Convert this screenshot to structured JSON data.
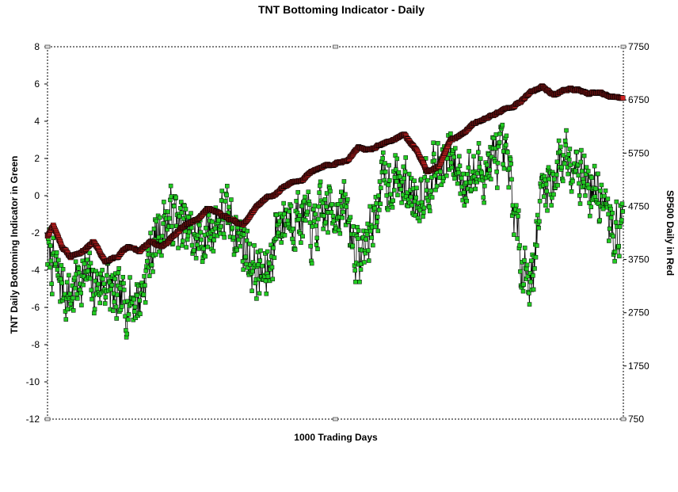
{
  "chart_data": {
    "type": "line",
    "title": "TNT Bottoming Indicator - Daily",
    "xlabel": "1000 Trading Days",
    "ylabel_left": "TNT Daily Bottoming Indicator in Green",
    "ylabel_right": "SP500 Daily in Red",
    "x": {
      "count": 1000,
      "min": 0,
      "max": 1000
    },
    "y_left": {
      "min": -12,
      "max": 8,
      "ticks": [
        "-12",
        "-10",
        "-8",
        "-6",
        "-4",
        "-2",
        "0",
        "2",
        "4",
        "6",
        "8"
      ]
    },
    "y_right": {
      "min": 750,
      "max": 7750,
      "ticks": [
        "750",
        "1750",
        "2750",
        "3750",
        "4750",
        "5750",
        "6750",
        "7750"
      ]
    },
    "grid": false,
    "legend": "none",
    "series": [
      {
        "axis": "left",
        "color": "#22cc22",
        "marker": "square",
        "anchors_x": [
          0,
          20,
          40,
          60,
          80,
          100,
          120,
          140,
          160,
          180,
          200,
          220,
          240,
          260,
          280,
          300,
          320,
          340,
          360,
          380,
          400,
          420,
          440,
          460,
          480,
          500,
          520,
          540,
          560,
          580,
          600,
          620,
          640,
          660,
          680,
          700,
          720,
          740,
          760,
          780,
          800,
          820,
          840,
          860,
          880,
          900,
          920,
          940,
          960,
          980,
          1000
        ],
        "anchors_y": [
          -3.0,
          -4.5,
          -5.5,
          -4.0,
          -5.0,
          -4.5,
          -6.0,
          -5.5,
          -5.5,
          -3.0,
          -1.5,
          -1.0,
          -2.0,
          -2.5,
          -2.0,
          -1.0,
          -1.5,
          -2.5,
          -4.0,
          -4.5,
          -1.5,
          -1.0,
          -1.0,
          -2.0,
          -1.0,
          -0.5,
          -1.0,
          -3.5,
          -2.0,
          0.5,
          1.0,
          0.5,
          0.0,
          1.0,
          1.5,
          2.0,
          1.0,
          1.0,
          1.5,
          2.0,
          1.5,
          -3.0,
          -4.5,
          0.5,
          1.0,
          2.5,
          2.0,
          0.5,
          0.0,
          -2.0,
          -1.5
        ],
        "noise": 2.4,
        "seed": 7
      },
      {
        "axis": "right",
        "color": "#cc2222",
        "marker": "square",
        "anchors_x": [
          0,
          10,
          25,
          40,
          60,
          80,
          100,
          120,
          140,
          160,
          180,
          200,
          220,
          240,
          260,
          280,
          300,
          320,
          340,
          360,
          380,
          400,
          420,
          440,
          460,
          480,
          500,
          520,
          540,
          560,
          580,
          600,
          620,
          640,
          660,
          680,
          700,
          720,
          740,
          760,
          780,
          800,
          820,
          840,
          860,
          880,
          900,
          920,
          940,
          960,
          980,
          1000
        ],
        "anchors_y": [
          4200,
          4400,
          4000,
          3800,
          3900,
          4100,
          3700,
          3800,
          4000,
          3900,
          4100,
          4000,
          4200,
          4400,
          4500,
          4700,
          4600,
          4500,
          4400,
          4700,
          4900,
          5000,
          5200,
          5250,
          5400,
          5500,
          5550,
          5600,
          5850,
          5800,
          5900,
          6000,
          6100,
          5800,
          5400,
          5500,
          6000,
          6100,
          6300,
          6400,
          6500,
          6600,
          6700,
          6900,
          7000,
          6850,
          6950,
          6950,
          6850,
          6900,
          6800,
          6800
        ],
        "noise": 60,
        "seed": 11
      }
    ]
  }
}
